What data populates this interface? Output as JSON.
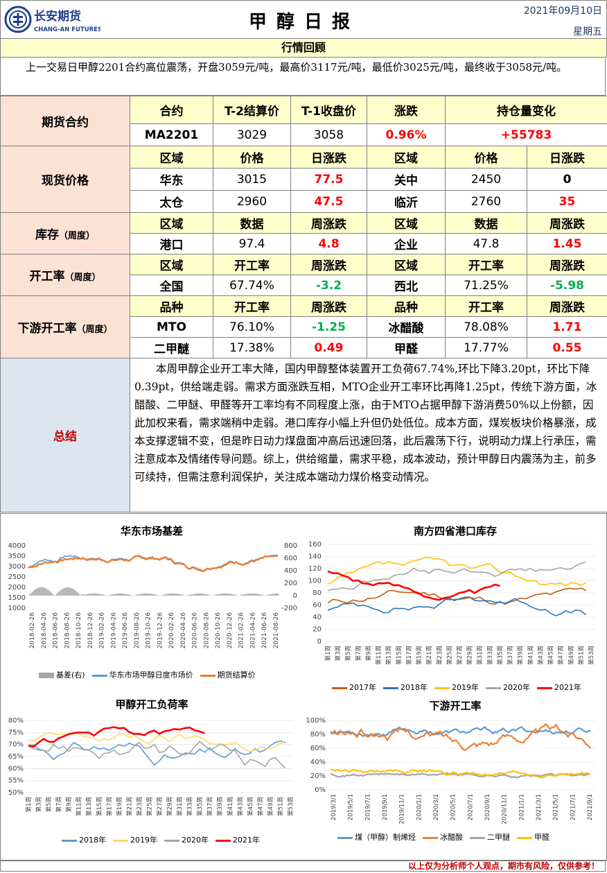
{
  "header": {
    "company_cn": "长安期货",
    "company_en": "CHANG-AN FUTURES",
    "title": "甲醇日报",
    "date": "2021年09月10日",
    "weekday": "星期五"
  },
  "review": {
    "heading": "行情回顾",
    "text": "上一交易日甲醇2201合约高位震荡，开盘3059元/吨，最高价3117元/吨，最低价3025元/吨，最终收于3058元/吨。"
  },
  "futures": {
    "label": "期货合约",
    "headers": [
      "合约",
      "T-2结算价",
      "T-1收盘价",
      "涨跌",
      "持仓量变化"
    ],
    "row": [
      "MA2201",
      "3029",
      "3058",
      "0.96%",
      "+55783"
    ]
  },
  "spot": {
    "label": "现货价格",
    "headers": [
      "区域",
      "价格",
      "日涨跌",
      "区域",
      "价格",
      "日涨跌"
    ],
    "rows": [
      [
        "华东",
        "3015",
        "77.5",
        "关中",
        "2450",
        "0"
      ],
      [
        "太仓",
        "2960",
        "47.5",
        "临沂",
        "2760",
        "35"
      ]
    ]
  },
  "inventory": {
    "label": "库存",
    "label_sub": "（周度）",
    "headers": [
      "区域",
      "数据",
      "周涨跌",
      "区域",
      "数据",
      "周涨跌"
    ],
    "row": [
      "港口",
      "97.4",
      "4.8",
      "企业",
      "47.8",
      "1.45"
    ]
  },
  "operating": {
    "label": "开工率",
    "label_sub": "（周度）",
    "headers": [
      "区域",
      "开工率",
      "周涨跌",
      "区域",
      "开工率",
      "周涨跌"
    ],
    "row": [
      "全国",
      "67.74%",
      "-3.2",
      "西北",
      "71.25%",
      "-5.98"
    ]
  },
  "downstream": {
    "label": "下游开工率",
    "label_sub": "（周度）",
    "headers": [
      "品种",
      "开工率",
      "周涨跌",
      "品种",
      "开工率",
      "周涨跌"
    ],
    "rows": [
      [
        "MTO",
        "76.10%",
        "-1.25",
        "冰醋酸",
        "78.08%",
        "1.71"
      ],
      [
        "二甲醚",
        "17.38%",
        "0.49",
        "甲醛",
        "17.77%",
        "0.55"
      ]
    ]
  },
  "summary": {
    "label": "总结",
    "text": "本周甲醇企业开工率大降，国内甲醇整体装置开工负荷67.74%,环比下降3.20pt，环比下降0.39pt，供给端走弱。需求方面涨跌互相，MTO企业开工率环比再降1.25pt，传统下游方面，冰醋酸、二甲醚、甲醛等开工率均有不同程度上涨，由于MTO占据甲醇下游消费50%以上份额，因此加权来看，需求端稍中走弱。港口库存小幅上升但仍处低位。成本方面，煤炭板块价格暴涨，成本支撑逻辑不变，但是昨日动力煤盘面冲高后迅速回落，此后震荡下行，说明动力煤上行承压，需注意成本及情绪传导问题。综上，供给缩量，需求平稳，成本波动，预计甲醇日内震荡为主，前多可续持，但需注意利润保护，关注成本端动力煤价格变动情况。"
  },
  "charts": {
    "c1": {
      "title": "华东市场基差",
      "yleft": [
        "4000",
        "3500",
        "3000",
        "2500",
        "2000",
        "1500",
        "1000"
      ],
      "yright": [
        "800",
        "600",
        "400",
        "200",
        "0",
        "-200"
      ],
      "xticks": [
        "2018-02-26",
        "2018-04-26",
        "2018-06-26",
        "2018-08-26",
        "2018-10-26",
        "2018-12-26",
        "2019-02-26",
        "2019-04-26",
        "2019-06-26",
        "2019-08-26",
        "2019-10-26",
        "2019-12-26",
        "2020-02-26",
        "2020-04-26",
        "2020-06-26",
        "2020-08-26",
        "2020-10-26",
        "2020-12-26",
        "2021-02-26",
        "2021-04-26",
        "2021-06-26",
        "2021-08-26"
      ],
      "legend": [
        "基差(右)",
        "华东市场甲醇日度市场价",
        "期货结算价"
      ],
      "colors": [
        "#a6a6a6",
        "#5b9bd5",
        "#ed7d31"
      ]
    },
    "c2": {
      "title": "南方四省港口库存",
      "yticks": [
        "160",
        "140",
        "120",
        "100",
        "80",
        "60",
        "40",
        "20",
        "0"
      ],
      "xticks": [
        "第1周",
        "第3周",
        "第5周",
        "第7周",
        "第9周",
        "第11周",
        "第13周",
        "第15周",
        "第17周",
        "第19周",
        "第21周",
        "第23周",
        "第25周",
        "第27周",
        "第29周",
        "第31周",
        "第33周",
        "第35周",
        "第37周",
        "第39周",
        "第41周",
        "第43周",
        "第45周",
        "第47周",
        "第49周",
        "第51周",
        "第53周"
      ],
      "legend": [
        "2017年",
        "2018年",
        "2019年",
        "2020年",
        "2021年"
      ],
      "colors": [
        "#c55a11",
        "#2e75b6",
        "#ffc000",
        "#a5a5a5",
        "#ff0000"
      ]
    },
    "c3": {
      "title": "甲醇开工负荷率",
      "yticks": [
        "80%",
        "75%",
        "70%",
        "65%",
        "60%",
        "55%",
        "50%"
      ],
      "xticks": [
        "第1周",
        "第3周",
        "第5周",
        "第7周",
        "第9周",
        "第11周",
        "第13周",
        "第15周",
        "第17周",
        "第19周",
        "第21周",
        "第23周",
        "第25周",
        "第27周",
        "第29周",
        "第31周",
        "第33周",
        "第35周",
        "第37周",
        "第39周",
        "第41周",
        "第43周",
        "第45周",
        "第47周",
        "第49周",
        "第51周",
        "第53周"
      ],
      "legend": [
        "2018年",
        "2019年",
        "2020年",
        "2021年"
      ],
      "colors": [
        "#5b9bd5",
        "#ffd966",
        "#a5a5a5",
        "#ff0000"
      ]
    },
    "c4": {
      "title": "下游开工率",
      "yticks": [
        "100%",
        "80%",
        "60%",
        "40%",
        "20%",
        "0%"
      ],
      "xticks": [
        "2019/3/1",
        "2019/5/1",
        "2019/7/1",
        "2019/9/1",
        "2019/11/1",
        "2020/1/1",
        "2020/3/1",
        "2020/5/1",
        "2020/7/1",
        "2020/9/1",
        "2020/11/1",
        "2021/1/1",
        "2021/3/1",
        "2021/5/1",
        "2021/7/1",
        "2021/9/1"
      ],
      "legend": [
        "煤（甲醇）制烯烃",
        "冰醋酸",
        "二甲醚",
        "甲醛"
      ],
      "colors": [
        "#5b9bd5",
        "#ed7d31",
        "#a5a5a5",
        "#ffc000"
      ]
    }
  },
  "footer": "以上仅为分析师个人观点，期市有风险，仅供参考！"
}
